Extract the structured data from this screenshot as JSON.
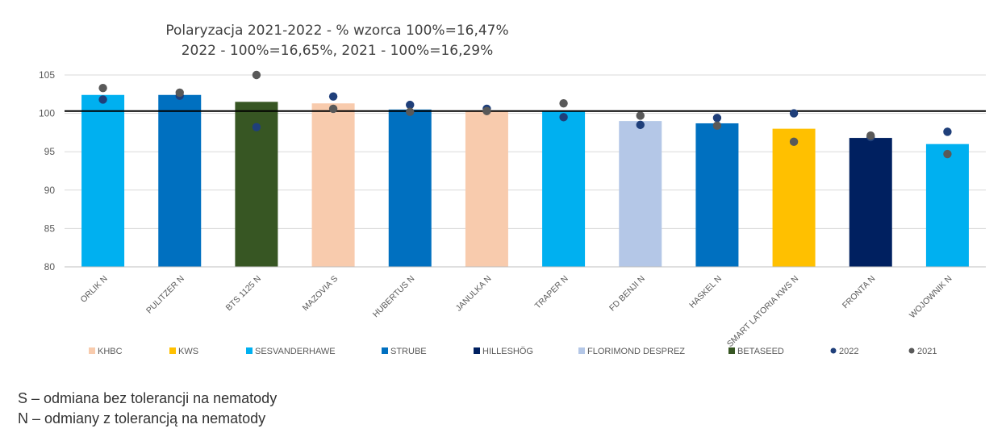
{
  "chart_data": {
    "type": "bar",
    "title_lines": [
      "Polaryzacja 2021-2022 - % wzorca 100%=16,47%",
      "2022 - 100%=16,65%, 2021 - 100%=16,29%"
    ],
    "categories": [
      "ORLIK N",
      "PULITZER N",
      "BTS 1125 N",
      "MAZOVIA S",
      "HUBERTUS N",
      "JANULKA N",
      "TRAPER N",
      "FD BENJI N",
      "HASKEL N",
      "SMART LATORIA KWS N",
      "FRONTA N",
      "WOJOWNIK N"
    ],
    "values": [
      102.4,
      102.4,
      101.5,
      101.3,
      100.5,
      100.3,
      100.3,
      99.0,
      98.7,
      98.0,
      96.8,
      96.0
    ],
    "breeders": [
      "SESVANDERHAWE",
      "STRUBE",
      "BETASEED",
      "KHBC",
      "STRUBE",
      "KHBC",
      "SESVANDERHAWE",
      "FLORIMOND DESPREZ",
      "STRUBE",
      "KWS",
      "HILLESHÖG",
      "SESVANDERHAWE"
    ],
    "series_points": [
      {
        "name": "2022",
        "values": [
          101.8,
          102.3,
          98.2,
          102.2,
          101.1,
          100.6,
          99.5,
          98.5,
          99.4,
          100.0,
          96.9,
          97.6
        ]
      },
      {
        "name": "2021",
        "values": [
          103.3,
          102.7,
          105.0,
          100.6,
          100.2,
          100.3,
          101.3,
          99.7,
          98.4,
          96.3,
          97.1,
          94.7
        ]
      }
    ],
    "reference_line": 100.3,
    "ylim": [
      80,
      105
    ],
    "yticks": [
      "80",
      "85",
      "90",
      "95",
      "100",
      "105"
    ],
    "grid": true,
    "legend_position": "bottom",
    "legend": [
      {
        "label": "KHBC",
        "kind": "square",
        "color": "#F8CBAD"
      },
      {
        "label": "KWS",
        "kind": "square",
        "color": "#FFC000"
      },
      {
        "label": "SESVANDERHAWE",
        "kind": "square",
        "color": "#00B0F0"
      },
      {
        "label": "STRUBE",
        "kind": "square",
        "color": "#0070C0"
      },
      {
        "label": "HILLESHÖG",
        "kind": "square",
        "color": "#002060"
      },
      {
        "label": "FLORIMOND DESPREZ",
        "kind": "square",
        "color": "#B4C7E7"
      },
      {
        "label": "BETASEED",
        "kind": "square",
        "color": "#375623"
      },
      {
        "label": "2022",
        "kind": "dot",
        "color": "#1F3F7A"
      },
      {
        "label": "2021",
        "kind": "dot",
        "color": "#595959"
      }
    ],
    "colors": {
      "KHBC": "#F8CBAD",
      "KWS": "#FFC000",
      "SESVANDERHAWE": "#00B0F0",
      "STRUBE": "#0070C0",
      "HILLESHÖG": "#002060",
      "FLORIMOND DESPREZ": "#B4C7E7",
      "BETASEED": "#375623",
      "2022": "#1F3F7A",
      "2021": "#595959",
      "grid": "#D9D9D9",
      "reference": "#000000"
    }
  },
  "notes": {
    "line1": "S – odmiana bez tolerancji na nematody",
    "line2": "N – odmiany z tolerancją na nematody"
  }
}
